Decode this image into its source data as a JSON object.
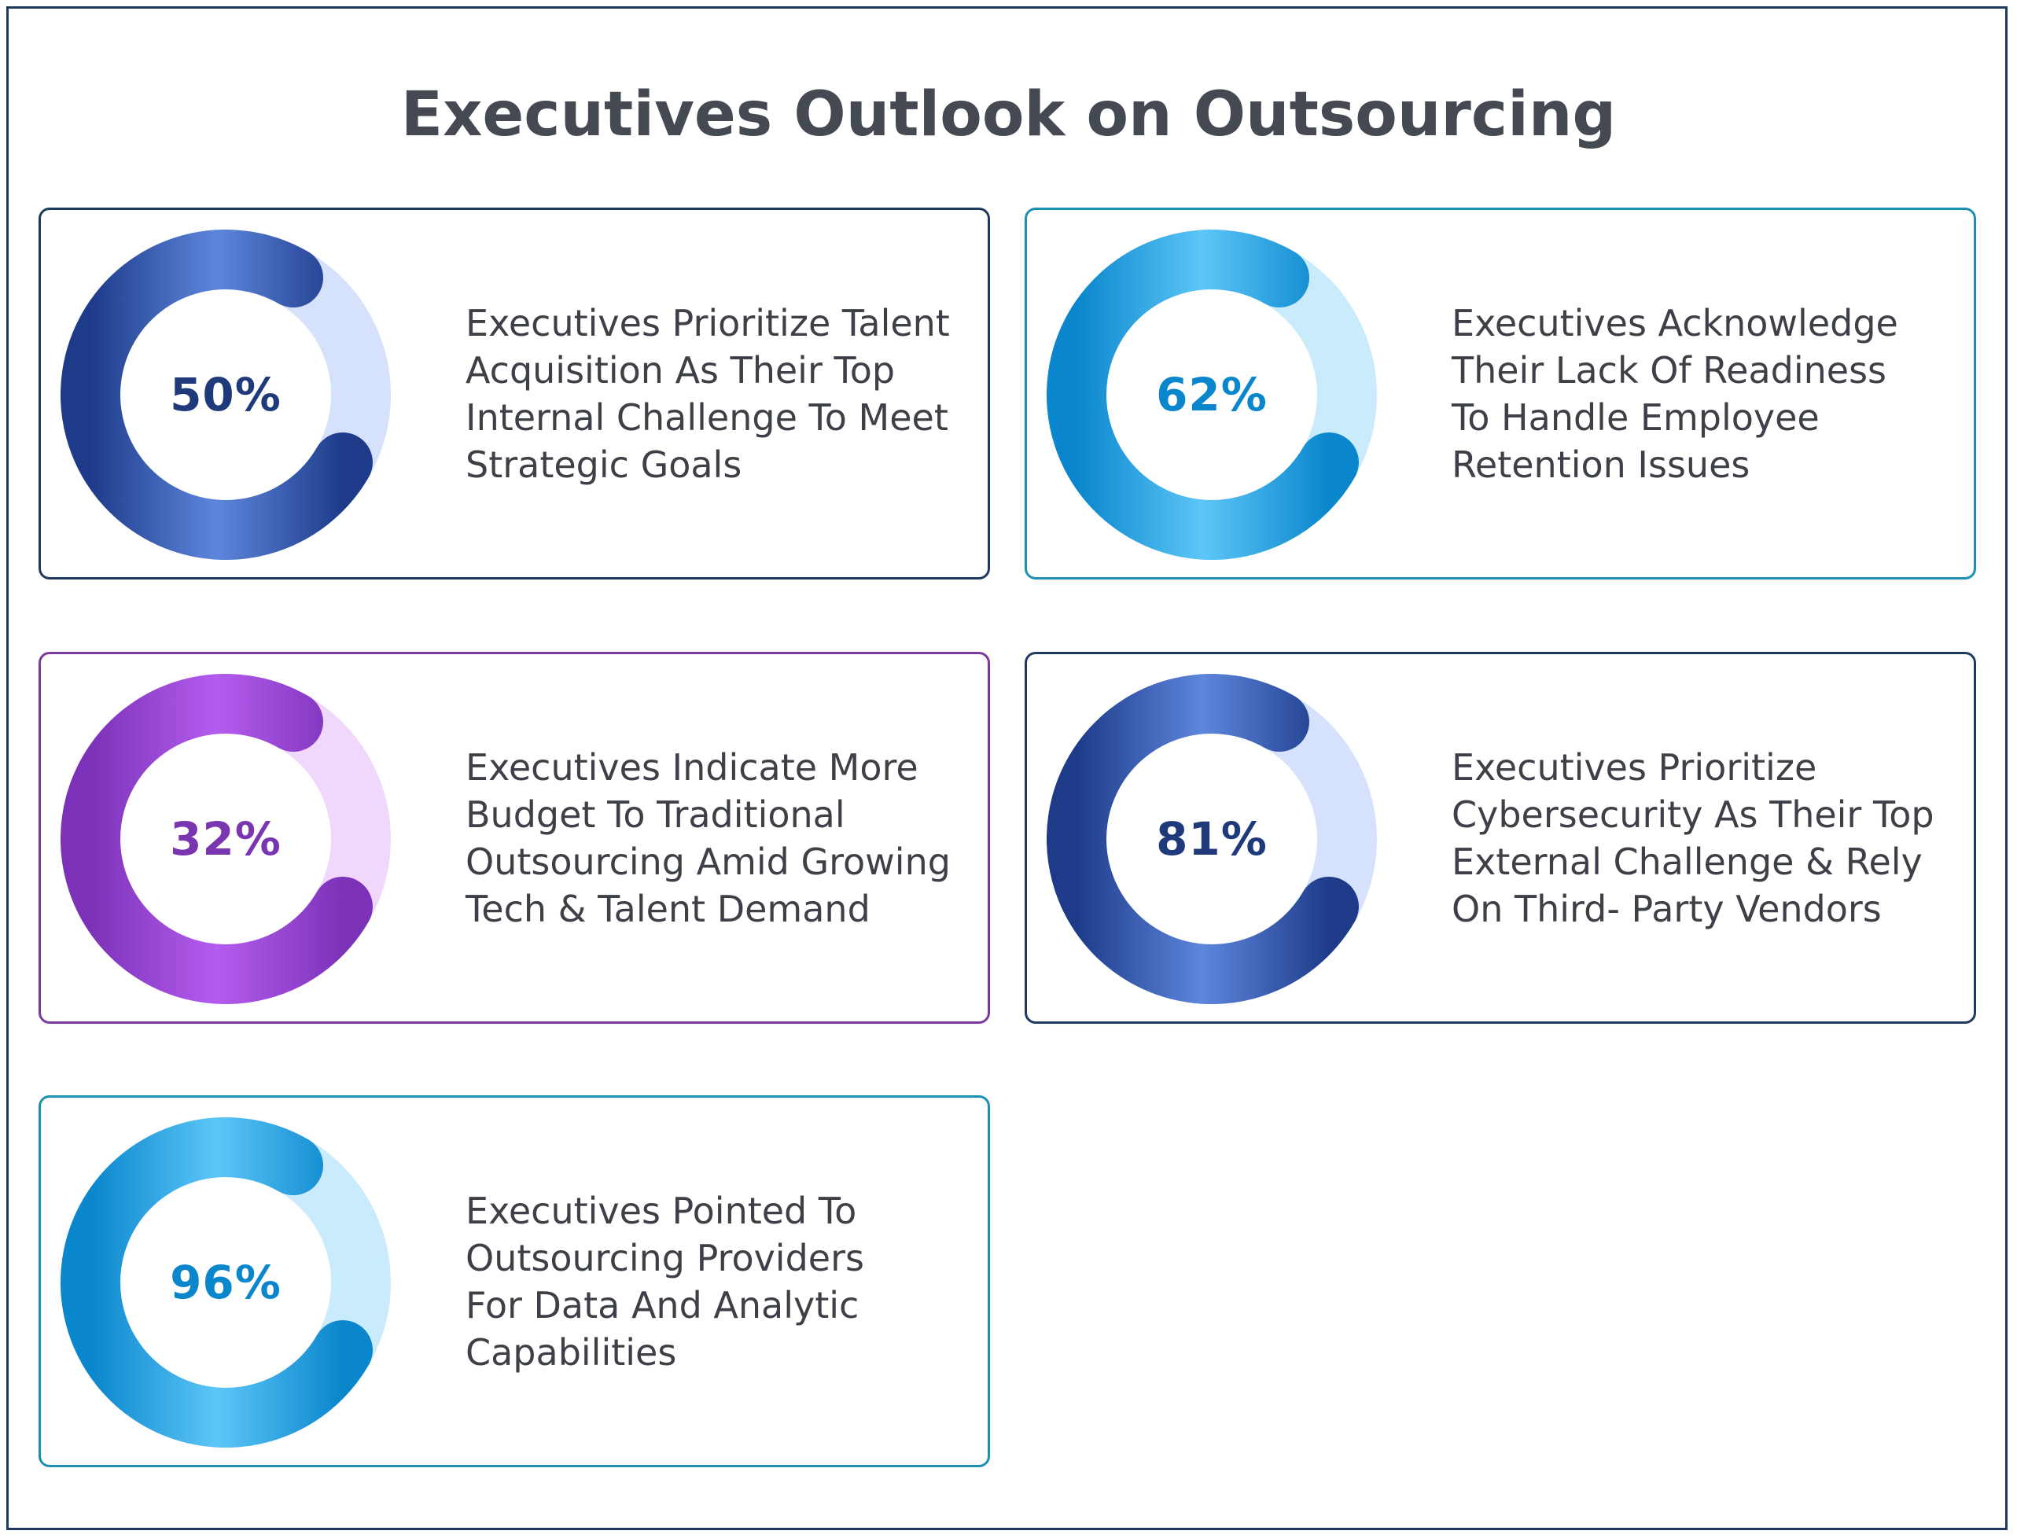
{
  "header": {
    "title": "Executives Outlook on Outsourcing"
  },
  "chart_data": [
    {
      "type": "pie",
      "values": [
        50
      ],
      "value_label": "50%",
      "description": "Executives Prioritize Talent Acquisition As Their Top Internal Challenge To Meet Strategic Goals",
      "colors": {
        "dark": "#1e3b8a",
        "light": "#5d86dc",
        "track": "#d6e2fb",
        "text": "#1e3a7a",
        "border": "#1f3a5f"
      }
    },
    {
      "type": "pie",
      "values": [
        62
      ],
      "value_label": "62%",
      "description": "Executives Acknowledge Their Lack Of Readiness To Handle Employee Retention Issues",
      "colors": {
        "dark": "#0a86cc",
        "light": "#5cc6f7",
        "track": "#c9ebfc",
        "text": "#0a86cc",
        "border": "#1d8fb3"
      }
    },
    {
      "type": "pie",
      "values": [
        32
      ],
      "value_label": "32%",
      "description": "Executives Indicate More Budget To Traditional Outsourcing Amid Growing Tech & Talent Demand",
      "colors": {
        "dark": "#7c32b8",
        "light": "#b45cee",
        "track": "#f0d8fc",
        "text": "#7a35b0",
        "border": "#7c3a9e"
      }
    },
    {
      "type": "pie",
      "values": [
        81
      ],
      "value_label": "81%",
      "description": "Executives Prioritize Cybersecurity As Their Top External Challenge & Rely On Third- Party Vendors",
      "colors": {
        "dark": "#1e3b8a",
        "light": "#5d86dc",
        "track": "#d6e2fb",
        "text": "#1e3a7a",
        "border": "#1f3a5f"
      }
    },
    {
      "type": "pie",
      "values": [
        96
      ],
      "value_label": "96%",
      "description": "Executives Pointed To Outsourcing Providers For Data And Analytic Capabilities",
      "colors": {
        "dark": "#0a86cc",
        "light": "#5cc6f7",
        "track": "#c9ebfc",
        "text": "#0a86cc",
        "border": "#1d8fb3"
      }
    }
  ]
}
